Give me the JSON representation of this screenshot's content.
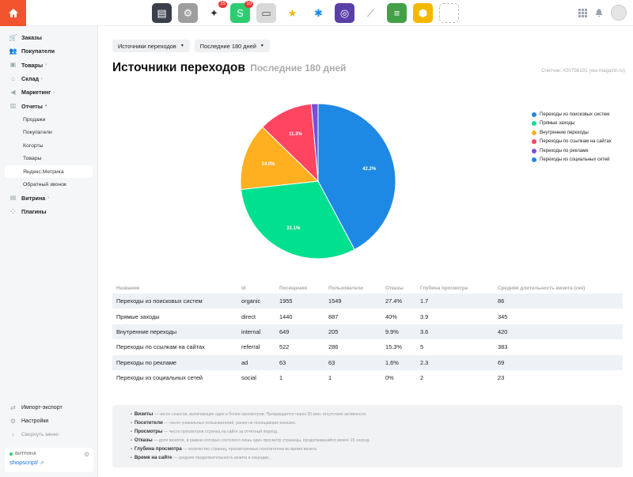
{
  "topbar": {
    "apps": [
      {
        "icon": "notebook-icon",
        "color": "#3a3f4b",
        "glyph": "▤",
        "badge": ""
      },
      {
        "icon": "gear-app-icon",
        "color": "#9e9e9e",
        "glyph": "⚙",
        "badge": ""
      },
      {
        "icon": "magic-wand-icon",
        "color": "#ffffff",
        "glyph": "✦",
        "badge": "25"
      },
      {
        "icon": "shop-script-icon",
        "color": "#2ecc71",
        "glyph": "S",
        "badge": "10"
      },
      {
        "icon": "window-icon",
        "color": "#d9d9d9",
        "glyph": "▭",
        "badge": ""
      },
      {
        "icon": "star-icon",
        "color": "#ffffff",
        "glyph": "★",
        "badge": ""
      },
      {
        "icon": "asterisk-icon",
        "color": "#ffffff",
        "glyph": "✱",
        "badge": ""
      },
      {
        "icon": "compass-icon",
        "color": "#5b3fa8",
        "glyph": "◎",
        "badge": ""
      },
      {
        "icon": "chart-app-icon",
        "color": "#ffffff",
        "glyph": "⟋",
        "badge": ""
      },
      {
        "icon": "list-app-icon",
        "color": "#43a047",
        "glyph": "≡",
        "badge": ""
      },
      {
        "icon": "hexagon-app-icon",
        "color": "#f5b800",
        "glyph": "⬢",
        "badge": ""
      },
      {
        "icon": "add-app-icon",
        "color": "#ffffff",
        "glyph": "",
        "badge": ""
      }
    ]
  },
  "sidebar": {
    "items": [
      {
        "label": "Заказы",
        "icon": "cart-icon",
        "glyph": "🛒",
        "arrow": ""
      },
      {
        "label": "Покупатели",
        "icon": "users-icon",
        "glyph": "👥",
        "arrow": ""
      },
      {
        "label": "Товары",
        "icon": "tag-icon",
        "glyph": "▣",
        "arrow": "›"
      },
      {
        "label": "Склад",
        "icon": "warehouse-icon",
        "glyph": "⌂",
        "arrow": "›"
      },
      {
        "label": "Маркетинг",
        "icon": "megaphone-icon",
        "glyph": "◀",
        "arrow": "›"
      },
      {
        "label": "Отчеты",
        "icon": "reports-icon",
        "glyph": "▥",
        "arrow": "▾"
      }
    ],
    "report_subitems": [
      "Продажи",
      "Покупатели",
      "Когорты",
      "Товары",
      "Яндекс.Метрика",
      "Обратный звонок"
    ],
    "items_after": [
      {
        "label": "Витрина",
        "icon": "storefront-icon",
        "glyph": "▤",
        "arrow": "›"
      },
      {
        "label": "Плагины",
        "icon": "plugins-icon",
        "glyph": "⁘",
        "arrow": ""
      }
    ],
    "bottom": {
      "import_export": "Импорт-экспорт",
      "settings": "Настройки",
      "collapse": "Свернуть меню"
    },
    "store": {
      "label": "ВИТРИНА",
      "link": "shopscript/"
    }
  },
  "main": {
    "filter_source": "Источники переходов",
    "filter_period": "Последние 180 дней",
    "title": "Источники переходов",
    "title_sub": "Последние 180 дней",
    "counter": "Счетчик: #20756101 (wa-magazin.ru)"
  },
  "chart_data": {
    "type": "pie",
    "title": "",
    "categories": [
      "Переходы из поисковых систем",
      "Прямые заходы",
      "Внутренние переходы",
      "Переходы по ссылкам на сайтах",
      "Переходы по рекламе",
      "Переходы из социальных сетей"
    ],
    "values": [
      42.2,
      31.1,
      14.0,
      11.3,
      1.4,
      0.0
    ],
    "labels": [
      "42.2%",
      "31.1%",
      "14.0%",
      "11.3%",
      "",
      ""
    ],
    "colors": [
      "#1e88e5",
      "#00e08e",
      "#ffb020",
      "#ff4560",
      "#7b4fd6",
      "#1e88e5"
    ],
    "legend": "right"
  },
  "table": {
    "headers": [
      "Название",
      "id",
      "Посещения",
      "Пользователи",
      "Отказы",
      "Глубина просмотра",
      "Средняя длительность визита (сек)"
    ],
    "rows": [
      [
        "Переходы из поисковых систем",
        "organic",
        "1955",
        "1549",
        "27.4%",
        "1.7",
        "86"
      ],
      [
        "Прямые заходы",
        "direct",
        "1440",
        "887",
        "40%",
        "3.9",
        "345"
      ],
      [
        "Внутренние переходы",
        "internal",
        "649",
        "205",
        "9.9%",
        "3.6",
        "420"
      ],
      [
        "Переходы по ссылкам на сайтах",
        "referral",
        "522",
        "286",
        "15.3%",
        "5",
        "383"
      ],
      [
        "Переходы по рекламе",
        "ad",
        "63",
        "63",
        "1.6%",
        "2.3",
        "69"
      ],
      [
        "Переходы из социальных сетей",
        "social",
        "1",
        "1",
        "0%",
        "2",
        "23"
      ]
    ]
  },
  "notes": [
    {
      "term": "Визиты",
      "text": " — число сеансов, включающих один и более просмотров. Прекращается через 30 мин. отсутствия активности."
    },
    {
      "term": "Посетители",
      "text": " — число уникальных пользователей, ранее не посещавших магазин."
    },
    {
      "term": "Просмотры",
      "text": " — число просмотров страниц на сайте за отчетный период."
    },
    {
      "term": "Отказы",
      "text": " — доля визитов, в рамках которых состоялся лишь один просмотр страницы, продолжавшийся менее 15 секунд."
    },
    {
      "term": "Глубина просмотра",
      "text": " — количество страниц, просмотренных посетителем во время визита."
    },
    {
      "term": "Время на сайте",
      "text": " — средняя продолжительность визита в секундах."
    }
  ]
}
